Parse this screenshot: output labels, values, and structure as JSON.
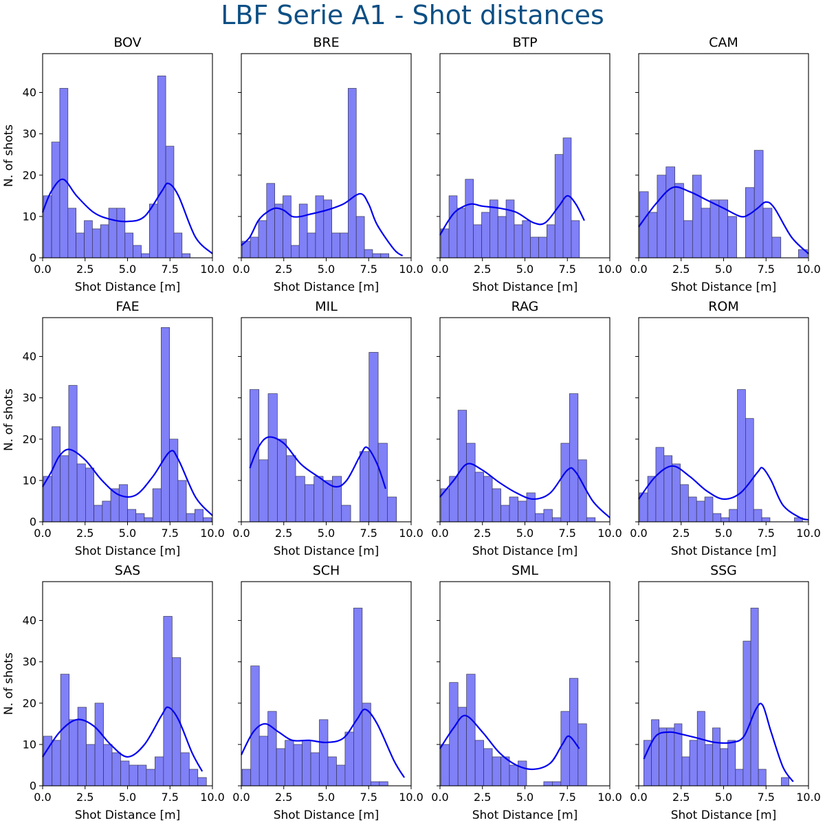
{
  "figure_title": "LBF Serie A1 - Shot distances",
  "colors": {
    "title": "#0b4f84",
    "bar_fill": "#8080f7",
    "bar_edge": "#333355",
    "kde_line": "#0000ee"
  },
  "chart_data": [
    {
      "type": "bar",
      "title": "BOV",
      "xlabel": "Shot Distance [m]",
      "ylabel": "N. of shots",
      "xlim": [
        0,
        10
      ],
      "ylim": [
        0,
        49.4
      ],
      "xticks": [
        "0.0",
        "2.5",
        "5.0",
        "7.5",
        "10.0"
      ],
      "yticks": [
        "0",
        "10",
        "20",
        "30",
        "40"
      ],
      "bins": {
        "start": 0.05,
        "width": 0.48
      },
      "values": [
        15,
        28,
        41,
        12,
        6,
        9,
        7,
        8,
        12,
        12,
        6,
        3,
        1,
        13,
        44,
        27,
        6,
        1,
        0,
        0
      ],
      "kde": [
        [
          0.0,
          11
        ],
        [
          0.5,
          16
        ],
        [
          1.2,
          19
        ],
        [
          2.0,
          15
        ],
        [
          3.0,
          11
        ],
        [
          4.0,
          9.3
        ],
        [
          5.0,
          8.8
        ],
        [
          6.0,
          10
        ],
        [
          7.0,
          16
        ],
        [
          7.4,
          18
        ],
        [
          8.0,
          15
        ],
        [
          9.0,
          5
        ],
        [
          10.0,
          1
        ]
      ]
    },
    {
      "type": "bar",
      "title": "BRE",
      "xlabel": "Shot Distance [m]",
      "ylabel": "",
      "xlim": [
        0,
        10
      ],
      "ylim": [
        0,
        49.4
      ],
      "xticks": [
        "0.0",
        "2.5",
        "5.0",
        "7.5",
        "10.0"
      ],
      "yticks": [
        "0",
        "10",
        "20",
        "30",
        "40"
      ],
      "bins": {
        "start": 0.05,
        "width": 0.48
      },
      "values": [
        4,
        5,
        9,
        18,
        13,
        15,
        3,
        13,
        6,
        15,
        14,
        6,
        6,
        41,
        10,
        2,
        1,
        1,
        0,
        0
      ],
      "kde": [
        [
          0.0,
          3
        ],
        [
          0.5,
          5
        ],
        [
          1.0,
          9
        ],
        [
          1.5,
          11
        ],
        [
          2.0,
          12
        ],
        [
          2.5,
          11.5
        ],
        [
          3.0,
          10
        ],
        [
          3.5,
          10
        ],
        [
          4.0,
          10.5
        ],
        [
          5.0,
          11.5
        ],
        [
          6.0,
          13
        ],
        [
          7.0,
          15.5
        ],
        [
          7.5,
          13
        ],
        [
          8.0,
          8
        ],
        [
          9.0,
          2
        ],
        [
          9.5,
          0.5
        ]
      ]
    },
    {
      "type": "bar",
      "title": "BTP",
      "xlabel": "Shot Distance [m]",
      "ylabel": "",
      "xlim": [
        0,
        10
      ],
      "ylim": [
        0,
        49.4
      ],
      "xticks": [
        "0.0",
        "2.5",
        "5.0",
        "7.5",
        "10.0"
      ],
      "yticks": [
        "0",
        "10",
        "20",
        "30",
        "40"
      ],
      "bins": {
        "start": 0.05,
        "width": 0.48
      },
      "values": [
        7,
        15,
        12,
        19,
        8,
        11,
        14,
        10,
        14,
        8,
        9,
        5,
        5,
        8,
        25,
        29,
        9,
        0,
        0,
        0
      ],
      "kde": [
        [
          0.0,
          5.5
        ],
        [
          0.5,
          9
        ],
        [
          1.0,
          11.5
        ],
        [
          1.8,
          13
        ],
        [
          2.5,
          12.5
        ],
        [
          3.5,
          12
        ],
        [
          4.5,
          11
        ],
        [
          5.5,
          8.5
        ],
        [
          6.2,
          8.5
        ],
        [
          7.0,
          12.5
        ],
        [
          7.5,
          15
        ],
        [
          8.0,
          13
        ],
        [
          8.5,
          9
        ]
      ]
    },
    {
      "type": "bar",
      "title": "CAM",
      "xlabel": "Shot Distance [m]",
      "ylabel": "",
      "xlim": [
        0,
        10
      ],
      "ylim": [
        0,
        49.4
      ],
      "xticks": [
        "0.0",
        "2.5",
        "5.0",
        "7.5",
        "10.0"
      ],
      "yticks": [
        "0",
        "10",
        "20",
        "30",
        "40"
      ],
      "bins": {
        "start": 0.05,
        "width": 0.52
      },
      "values": [
        16,
        11,
        20,
        22,
        18,
        9,
        20,
        12,
        14,
        14,
        10,
        0,
        17,
        26,
        12,
        5,
        0,
        0,
        2,
        0
      ],
      "kde": [
        [
          0.0,
          7.5
        ],
        [
          1.0,
          13
        ],
        [
          2.0,
          17
        ],
        [
          3.0,
          16
        ],
        [
          4.0,
          14
        ],
        [
          5.0,
          12
        ],
        [
          6.0,
          10
        ],
        [
          6.5,
          10.5
        ],
        [
          7.0,
          12
        ],
        [
          7.5,
          13.5
        ],
        [
          8.0,
          12
        ],
        [
          9.0,
          5
        ],
        [
          10.0,
          1
        ]
      ]
    },
    {
      "type": "bar",
      "title": "FAE",
      "xlabel": "Shot Distance [m]",
      "ylabel": "N. of shots",
      "xlim": [
        0,
        10
      ],
      "ylim": [
        0,
        49.4
      ],
      "xticks": [
        "0.0",
        "2.5",
        "5.0",
        "7.5",
        "10.0"
      ],
      "yticks": [
        "0",
        "10",
        "20",
        "30",
        "40"
      ],
      "bins": {
        "start": 0.05,
        "width": 0.495
      },
      "values": [
        11,
        23,
        16,
        33,
        14,
        13,
        4,
        5,
        8,
        9,
        3,
        2,
        1,
        8,
        47,
        20,
        10,
        2,
        3,
        1
      ],
      "kde": [
        [
          0.0,
          8.5
        ],
        [
          0.5,
          12
        ],
        [
          1.0,
          16
        ],
        [
          1.6,
          17.5
        ],
        [
          2.5,
          15
        ],
        [
          3.5,
          10
        ],
        [
          4.5,
          6.5
        ],
        [
          5.5,
          6.5
        ],
        [
          6.5,
          11
        ],
        [
          7.5,
          17
        ],
        [
          8.0,
          15
        ],
        [
          9.0,
          6
        ],
        [
          10.0,
          1.5
        ]
      ]
    },
    {
      "type": "bar",
      "title": "MIL",
      "xlabel": "Shot Distance [m]",
      "ylabel": "",
      "xlim": [
        0,
        10
      ],
      "ylim": [
        0,
        49.4
      ],
      "xticks": [
        "0.0",
        "2.5",
        "5.0",
        "7.5",
        "10.0"
      ],
      "yticks": [
        "0",
        "10",
        "20",
        "30",
        "40"
      ],
      "bins": {
        "start": 0.5,
        "width": 0.54
      },
      "values": [
        32,
        15,
        31,
        20,
        16,
        11,
        9,
        11,
        10,
        11,
        4,
        0,
        17,
        41,
        19,
        6
      ],
      "kde": [
        [
          0.5,
          13
        ],
        [
          1.0,
          18
        ],
        [
          1.6,
          20.5
        ],
        [
          2.5,
          19
        ],
        [
          3.5,
          14
        ],
        [
          4.5,
          11
        ],
        [
          5.5,
          8.5
        ],
        [
          6.2,
          10
        ],
        [
          7.0,
          16
        ],
        [
          7.4,
          18
        ],
        [
          8.0,
          14
        ],
        [
          8.5,
          8
        ]
      ]
    },
    {
      "type": "bar",
      "title": "RAG",
      "xlabel": "Shot Distance [m]",
      "ylabel": "",
      "xlim": [
        0,
        10
      ],
      "ylim": [
        0,
        49.4
      ],
      "xticks": [
        "0.0",
        "2.5",
        "5.0",
        "7.5",
        "10.0"
      ],
      "yticks": [
        "0",
        "10",
        "20",
        "30",
        "40"
      ],
      "bins": {
        "start": 0.05,
        "width": 0.505
      },
      "values": [
        8,
        11,
        27,
        19,
        12,
        11,
        8,
        4,
        6,
        5,
        7,
        2,
        3,
        1,
        19,
        31,
        15,
        1,
        0,
        0
      ],
      "kde": [
        [
          0.0,
          6
        ],
        [
          0.8,
          10
        ],
        [
          1.6,
          14
        ],
        [
          2.5,
          12.5
        ],
        [
          3.5,
          9.5
        ],
        [
          4.5,
          7
        ],
        [
          5.5,
          5.5
        ],
        [
          6.5,
          7
        ],
        [
          7.5,
          12.5
        ],
        [
          8.0,
          12
        ],
        [
          9.0,
          5
        ],
        [
          10.0,
          1
        ]
      ]
    },
    {
      "type": "bar",
      "title": "ROM",
      "xlabel": "Shot Distance [m]",
      "ylabel": "",
      "xlim": [
        0,
        10
      ],
      "ylim": [
        0,
        49.4
      ],
      "xticks": [
        "0.0",
        "2.5",
        "5.0",
        "7.5",
        "10.0"
      ],
      "yticks": [
        "0",
        "10",
        "20",
        "30",
        "40"
      ],
      "bins": {
        "start": 0.05,
        "width": 0.48
      },
      "values": [
        7,
        11,
        18,
        16,
        14,
        9,
        6,
        5,
        6,
        2,
        1,
        3,
        32,
        25,
        3,
        1,
        0,
        0,
        0,
        1
      ],
      "kde": [
        [
          0.0,
          5.5
        ],
        [
          1.0,
          11
        ],
        [
          2.0,
          13.5
        ],
        [
          3.0,
          11
        ],
        [
          4.0,
          7.5
        ],
        [
          5.0,
          5.5
        ],
        [
          6.0,
          7
        ],
        [
          7.0,
          12
        ],
        [
          7.3,
          13
        ],
        [
          7.8,
          10
        ],
        [
          8.5,
          4
        ],
        [
          9.5,
          1
        ],
        [
          10.0,
          0.5
        ]
      ]
    },
    {
      "type": "bar",
      "title": "SAS",
      "xlabel": "Shot Distance [m]",
      "ylabel": "N. of shots",
      "xlim": [
        0,
        10
      ],
      "ylim": [
        0,
        49.4
      ],
      "xticks": [
        "0.0",
        "2.5",
        "5.0",
        "7.5",
        "10.0"
      ],
      "yticks": [
        "0",
        "10",
        "20",
        "30",
        "40"
      ],
      "bins": {
        "start": 0.05,
        "width": 0.505
      },
      "values": [
        12,
        11,
        27,
        16,
        19,
        10,
        20,
        10,
        8,
        6,
        5,
        5,
        4,
        7,
        41,
        31,
        8,
        4,
        2,
        0
      ],
      "kde": [
        [
          0.0,
          7
        ],
        [
          1.0,
          13
        ],
        [
          2.0,
          16
        ],
        [
          3.0,
          14.5
        ],
        [
          4.0,
          10
        ],
        [
          5.0,
          7
        ],
        [
          6.0,
          10
        ],
        [
          7.0,
          17
        ],
        [
          7.4,
          19
        ],
        [
          8.0,
          16
        ],
        [
          8.8,
          8
        ],
        [
          9.4,
          3.5
        ]
      ]
    },
    {
      "type": "bar",
      "title": "SCH",
      "xlabel": "Shot Distance [m]",
      "ylabel": "",
      "xlim": [
        0,
        10
      ],
      "ylim": [
        0,
        49.4
      ],
      "xticks": [
        "0.0",
        "2.5",
        "5.0",
        "7.5",
        "10.0"
      ],
      "yticks": [
        "0",
        "10",
        "20",
        "30",
        "40"
      ],
      "bins": {
        "start": 0.05,
        "width": 0.505
      },
      "values": [
        4,
        29,
        12,
        18,
        9,
        11,
        10,
        11,
        8,
        16,
        7,
        5,
        13,
        43,
        20,
        1,
        1,
        0,
        0,
        0
      ],
      "kde": [
        [
          0.0,
          7.5
        ],
        [
          0.7,
          13
        ],
        [
          1.4,
          15
        ],
        [
          2.2,
          13
        ],
        [
          3.0,
          11
        ],
        [
          4.0,
          11
        ],
        [
          5.0,
          10.5
        ],
        [
          6.0,
          11.5
        ],
        [
          6.8,
          16
        ],
        [
          7.3,
          18.5
        ],
        [
          8.0,
          15
        ],
        [
          9.0,
          6
        ],
        [
          9.6,
          2
        ]
      ]
    },
    {
      "type": "bar",
      "title": "SML",
      "xlabel": "Shot Distance [m]",
      "ylabel": "",
      "xlim": [
        0,
        10
      ],
      "ylim": [
        0,
        49.4
      ],
      "xticks": [
        "0.0",
        "2.5",
        "5.0",
        "7.5",
        "10.0"
      ],
      "yticks": [
        "0",
        "10",
        "20",
        "30",
        "40"
      ],
      "bins": {
        "start": 0.05,
        "width": 0.505
      },
      "values": [
        10,
        25,
        19,
        27,
        11,
        9,
        7,
        7,
        5,
        6,
        0,
        0,
        1,
        1,
        18,
        26,
        15
      ],
      "kde": [
        [
          0.0,
          9
        ],
        [
          0.8,
          14
        ],
        [
          1.5,
          17
        ],
        [
          2.5,
          13
        ],
        [
          3.5,
          8
        ],
        [
          4.5,
          5
        ],
        [
          5.5,
          4
        ],
        [
          6.5,
          5.5
        ],
        [
          7.2,
          10
        ],
        [
          7.6,
          12
        ],
        [
          8.2,
          9
        ]
      ]
    },
    {
      "type": "bar",
      "title": "SSG",
      "xlabel": "Shot Distance [m]",
      "ylabel": "",
      "xlim": [
        0,
        10
      ],
      "ylim": [
        0,
        49.4
      ],
      "xticks": [
        "0.0",
        "2.5",
        "5.0",
        "7.5",
        "10.0"
      ],
      "yticks": [
        "0",
        "10",
        "20",
        "30",
        "40"
      ],
      "bins": {
        "start": 0.3,
        "width": 0.45
      },
      "values": [
        11,
        16,
        14,
        14,
        15,
        7,
        11,
        18,
        10,
        14,
        9,
        11,
        4,
        35,
        43,
        4,
        0,
        0,
        2
      ],
      "kde": [
        [
          0.3,
          6.5
        ],
        [
          1.0,
          12
        ],
        [
          1.8,
          13
        ],
        [
          2.5,
          12.5
        ],
        [
          3.5,
          11.5
        ],
        [
          4.5,
          10.5
        ],
        [
          5.5,
          10.5
        ],
        [
          6.2,
          12
        ],
        [
          6.9,
          18.5
        ],
        [
          7.3,
          19.5
        ],
        [
          7.8,
          13
        ],
        [
          8.5,
          4.5
        ],
        [
          9.1,
          1
        ]
      ]
    }
  ]
}
